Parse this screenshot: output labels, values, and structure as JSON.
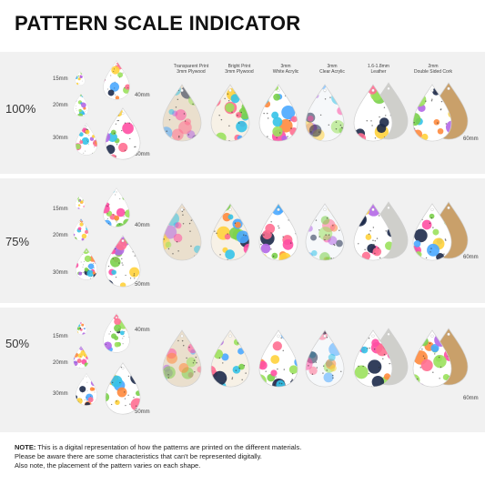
{
  "title": "PATTERN SCALE INDICATOR",
  "materials": [
    {
      "line1": "Transparent Print",
      "line2": "3mm Plywood"
    },
    {
      "line1": "Bright Print",
      "line2": "3mm Plywood"
    },
    {
      "line1": "3mm",
      "line2": "White Acrylic"
    },
    {
      "line1": "3mm",
      "line2": "Clear Acrylic"
    },
    {
      "line1": "1.6-1.8mm",
      "line2": "Leather"
    },
    {
      "line1": "2mm",
      "line2": "Double Sided Cork"
    }
  ],
  "rows": [
    {
      "scale": "100%",
      "s15": "15mm",
      "s20": "20mm",
      "s30": "30mm",
      "s40": "40mm",
      "s50": "50mm",
      "s60": "60mm"
    },
    {
      "scale": "75%",
      "s15": "15mm",
      "s20": "20mm",
      "s30": "30mm",
      "s40": "40mm",
      "s50": "50mm",
      "s60": "60mm"
    },
    {
      "scale": "50%",
      "s15": "15mm",
      "s20": "20mm",
      "s30": "30mm",
      "s40": "40mm",
      "s50": "50mm",
      "s60": "60mm"
    }
  ],
  "note": {
    "label": "NOTE:",
    "line1": " This is a digital representation of how the patterns are printed on the different materials.",
    "line2": "Please be aware there are some characteristics that can't be represented digitally.",
    "line3": "Also note, the placement of the pattern varies on each shape."
  }
}
